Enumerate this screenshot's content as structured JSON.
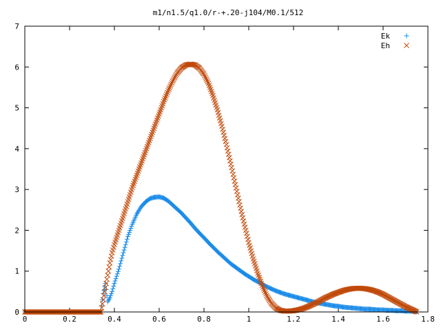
{
  "chart_data": {
    "type": "scatter",
    "title": "m1/n1.5/q1.0/r-+.20-j104/M0.1/512",
    "xlabel": "",
    "ylabel": "",
    "xlim": [
      0,
      1.8
    ],
    "ylim": [
      0,
      7
    ],
    "x_ticks": [
      "0",
      "0.2",
      "0.4",
      "0.6",
      "0.8",
      "1",
      "1.2",
      "1.4",
      "1.6",
      "1.8"
    ],
    "y_ticks": [
      "0",
      "1",
      "2",
      "3",
      "4",
      "5",
      "6",
      "7"
    ],
    "grid": false,
    "legend_position": "top-right",
    "series": [
      {
        "name": "Ek",
        "marker": "plus",
        "color": "#1a8be8",
        "x": [
          0.0,
          0.05,
          0.1,
          0.15,
          0.2,
          0.25,
          0.3,
          0.34,
          0.35,
          0.36,
          0.37,
          0.38,
          0.39,
          0.4,
          0.42,
          0.44,
          0.46,
          0.48,
          0.5,
          0.52,
          0.54,
          0.56,
          0.58,
          0.6,
          0.62,
          0.64,
          0.66,
          0.68,
          0.7,
          0.72,
          0.74,
          0.76,
          0.78,
          0.8,
          0.82,
          0.84,
          0.86,
          0.88,
          0.9,
          0.92,
          0.94,
          0.96,
          0.98,
          1.0,
          1.02,
          1.04,
          1.06,
          1.08,
          1.1,
          1.12,
          1.14,
          1.16,
          1.18,
          1.2,
          1.22,
          1.24,
          1.26,
          1.28,
          1.3,
          1.32,
          1.34,
          1.36,
          1.38,
          1.4,
          1.42,
          1.44,
          1.46,
          1.48,
          1.5,
          1.52,
          1.54,
          1.56,
          1.58,
          1.6,
          1.62,
          1.64,
          1.66,
          1.68,
          1.7,
          1.72,
          1.74,
          1.75
        ],
        "y": [
          0.0,
          0.0,
          0.0,
          0.0,
          0.0,
          0.0,
          0.0,
          0.0,
          0.45,
          0.7,
          0.25,
          0.35,
          0.5,
          0.7,
          1.05,
          1.45,
          1.85,
          2.15,
          2.4,
          2.58,
          2.7,
          2.78,
          2.81,
          2.82,
          2.79,
          2.72,
          2.62,
          2.52,
          2.42,
          2.3,
          2.18,
          2.05,
          1.93,
          1.82,
          1.7,
          1.59,
          1.48,
          1.38,
          1.28,
          1.18,
          1.1,
          1.02,
          0.94,
          0.87,
          0.8,
          0.74,
          0.68,
          0.62,
          0.57,
          0.52,
          0.48,
          0.44,
          0.41,
          0.38,
          0.35,
          0.32,
          0.29,
          0.26,
          0.23,
          0.21,
          0.19,
          0.17,
          0.15,
          0.14,
          0.12,
          0.11,
          0.1,
          0.09,
          0.08,
          0.07,
          0.07,
          0.06,
          0.05,
          0.05,
          0.04,
          0.04,
          0.03,
          0.03,
          0.02,
          0.02,
          0.01,
          0.0
        ]
      },
      {
        "name": "Eh",
        "marker": "cross",
        "color": "#c04a0a",
        "x": [
          0.0,
          0.05,
          0.1,
          0.15,
          0.2,
          0.25,
          0.3,
          0.34,
          0.35,
          0.36,
          0.37,
          0.38,
          0.39,
          0.4,
          0.42,
          0.44,
          0.46,
          0.48,
          0.5,
          0.52,
          0.54,
          0.56,
          0.58,
          0.6,
          0.62,
          0.64,
          0.66,
          0.68,
          0.7,
          0.72,
          0.74,
          0.76,
          0.78,
          0.8,
          0.82,
          0.84,
          0.86,
          0.88,
          0.9,
          0.92,
          0.94,
          0.96,
          0.98,
          1.0,
          1.02,
          1.04,
          1.06,
          1.08,
          1.1,
          1.12,
          1.14,
          1.16,
          1.18,
          1.2,
          1.22,
          1.24,
          1.26,
          1.28,
          1.3,
          1.32,
          1.34,
          1.36,
          1.38,
          1.4,
          1.42,
          1.44,
          1.46,
          1.48,
          1.5,
          1.52,
          1.54,
          1.56,
          1.58,
          1.6,
          1.62,
          1.64,
          1.66,
          1.68,
          1.7,
          1.72,
          1.74,
          1.75
        ],
        "y": [
          0.0,
          0.0,
          0.0,
          0.0,
          0.0,
          0.0,
          0.0,
          0.0,
          0.3,
          0.6,
          0.9,
          1.2,
          1.45,
          1.65,
          2.0,
          2.35,
          2.7,
          3.05,
          3.35,
          3.65,
          3.95,
          4.25,
          4.55,
          4.85,
          5.15,
          5.42,
          5.65,
          5.85,
          5.98,
          6.05,
          6.07,
          6.05,
          5.97,
          5.82,
          5.6,
          5.3,
          4.95,
          4.55,
          4.1,
          3.62,
          3.12,
          2.62,
          2.15,
          1.7,
          1.3,
          0.95,
          0.65,
          0.4,
          0.22,
          0.1,
          0.04,
          0.02,
          0.02,
          0.03,
          0.05,
          0.08,
          0.12,
          0.17,
          0.22,
          0.28,
          0.34,
          0.39,
          0.44,
          0.48,
          0.52,
          0.55,
          0.57,
          0.58,
          0.58,
          0.57,
          0.55,
          0.52,
          0.48,
          0.43,
          0.37,
          0.31,
          0.25,
          0.19,
          0.13,
          0.08,
          0.03,
          0.0
        ]
      }
    ]
  }
}
